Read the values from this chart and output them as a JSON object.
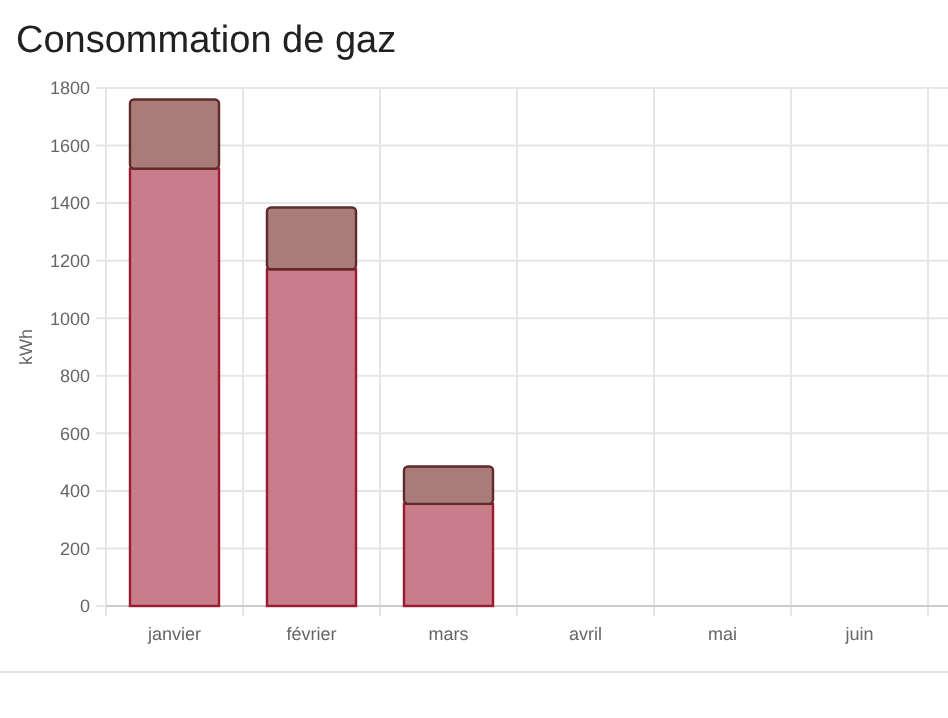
{
  "chart_data": {
    "type": "bar",
    "title": "Consommation de gaz",
    "ylabel": "kWh",
    "categories": [
      "janvier",
      "février",
      "mars",
      "avril",
      "mai",
      "juin"
    ],
    "stacked": true,
    "series": [
      {
        "color": "#c97d8a",
        "values": [
          1520,
          1170,
          355,
          null,
          null,
          null
        ]
      },
      {
        "color": "#a97b79",
        "values": [
          240,
          215,
          130,
          null,
          null,
          null
        ]
      }
    ],
    "ylim": [
      0,
      1800
    ],
    "yticks": [
      0,
      200,
      400,
      600,
      800,
      1000,
      1200,
      1400,
      1600,
      1800
    ],
    "grid": true
  }
}
